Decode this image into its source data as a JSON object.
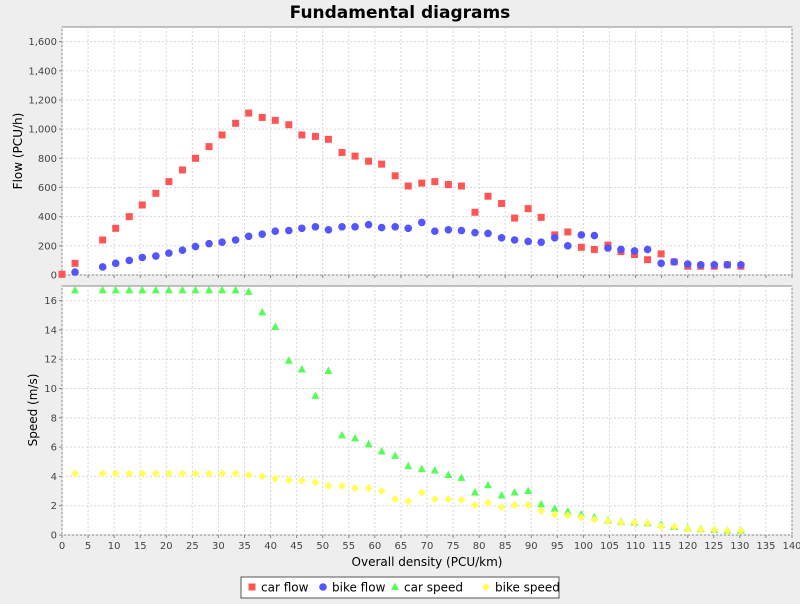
{
  "chart_data": {
    "type": "scatter",
    "title": "Fundamental diagrams",
    "xlabel": "Overall density (PCU/km)",
    "xlim": [
      0,
      140
    ],
    "x_ticks": [
      0,
      5,
      10,
      15,
      20,
      25,
      30,
      35,
      40,
      45,
      50,
      55,
      60,
      65,
      70,
      75,
      80,
      85,
      90,
      95,
      100,
      105,
      110,
      115,
      120,
      125,
      130,
      135,
      140
    ],
    "legend_position": "bottom",
    "grid": true,
    "panels": [
      {
        "ylabel": "Flow (PCU/h)",
        "ylim": [
          0,
          1700
        ],
        "y_ticks": [
          0,
          200,
          400,
          600,
          800,
          1000,
          1200,
          1400,
          1600
        ],
        "y_tick_labels": [
          "0",
          "200",
          "400",
          "600",
          "800",
          "1,000",
          "1,200",
          "1,400",
          "1,600"
        ]
      },
      {
        "ylabel": "Speed (m/s)",
        "ylim": [
          0,
          17
        ],
        "y_ticks": [
          0,
          2,
          4,
          6,
          8,
          10,
          12,
          14,
          16
        ],
        "y_tick_labels": [
          "0",
          "2",
          "4",
          "6",
          "8",
          "10",
          "12",
          "14",
          "16"
        ]
      }
    ],
    "series": [
      {
        "name": "car flow",
        "panel": 0,
        "marker": "square",
        "color": "#ff5555",
        "points": [
          [
            0,
            5
          ],
          [
            2.5,
            80
          ],
          [
            7.8,
            240
          ],
          [
            10.3,
            320
          ],
          [
            12.9,
            400
          ],
          [
            15.4,
            480
          ],
          [
            18,
            560
          ],
          [
            20.5,
            640
          ],
          [
            23.1,
            720
          ],
          [
            25.6,
            800
          ],
          [
            28.2,
            880
          ],
          [
            30.7,
            960
          ],
          [
            33.3,
            1040
          ],
          [
            35.8,
            1110
          ],
          [
            38.4,
            1080
          ],
          [
            40.9,
            1060
          ],
          [
            43.5,
            1030
          ],
          [
            46,
            960
          ],
          [
            48.6,
            950
          ],
          [
            51.1,
            930
          ],
          [
            53.7,
            840
          ],
          [
            56.2,
            815
          ],
          [
            58.8,
            780
          ],
          [
            61.3,
            760
          ],
          [
            63.9,
            680
          ],
          [
            66.4,
            610
          ],
          [
            69,
            630
          ],
          [
            71.5,
            640
          ],
          [
            74.1,
            620
          ],
          [
            76.6,
            610
          ],
          [
            79.2,
            430
          ],
          [
            81.7,
            540
          ],
          [
            84.3,
            490
          ],
          [
            86.8,
            390
          ],
          [
            89.4,
            455
          ],
          [
            91.9,
            395
          ],
          [
            94.5,
            275
          ],
          [
            97,
            295
          ],
          [
            99.6,
            190
          ],
          [
            102.1,
            175
          ],
          [
            104.7,
            205
          ],
          [
            107.2,
            160
          ],
          [
            109.8,
            140
          ],
          [
            112.3,
            105
          ],
          [
            114.9,
            145
          ],
          [
            117.4,
            90
          ],
          [
            120,
            60
          ],
          [
            122.5,
            60
          ],
          [
            125.1,
            60
          ],
          [
            127.6,
            70
          ],
          [
            130.2,
            60
          ]
        ]
      },
      {
        "name": "bike flow",
        "panel": 0,
        "marker": "circle",
        "color": "#5555ff",
        "points": [
          [
            2.5,
            20
          ],
          [
            7.8,
            55
          ],
          [
            10.3,
            80
          ],
          [
            12.9,
            100
          ],
          [
            15.4,
            120
          ],
          [
            18,
            130
          ],
          [
            20.5,
            150
          ],
          [
            23.1,
            170
          ],
          [
            25.6,
            195
          ],
          [
            28.2,
            215
          ],
          [
            30.7,
            225
          ],
          [
            33.3,
            240
          ],
          [
            35.8,
            265
          ],
          [
            38.4,
            280
          ],
          [
            40.9,
            300
          ],
          [
            43.5,
            305
          ],
          [
            46,
            320
          ],
          [
            48.6,
            330
          ],
          [
            51.1,
            310
          ],
          [
            53.7,
            330
          ],
          [
            56.2,
            330
          ],
          [
            58.8,
            345
          ],
          [
            61.3,
            325
          ],
          [
            63.9,
            330
          ],
          [
            66.4,
            320
          ],
          [
            69,
            360
          ],
          [
            71.5,
            300
          ],
          [
            74.1,
            310
          ],
          [
            76.6,
            305
          ],
          [
            79.2,
            290
          ],
          [
            81.7,
            285
          ],
          [
            84.3,
            255
          ],
          [
            86.8,
            240
          ],
          [
            89.4,
            230
          ],
          [
            91.9,
            225
          ],
          [
            94.5,
            255
          ],
          [
            97,
            200
          ],
          [
            99.6,
            275
          ],
          [
            102.1,
            270
          ],
          [
            104.7,
            185
          ],
          [
            107.2,
            175
          ],
          [
            109.8,
            165
          ],
          [
            112.3,
            175
          ],
          [
            114.9,
            80
          ],
          [
            117.4,
            90
          ],
          [
            120,
            75
          ],
          [
            122.5,
            70
          ],
          [
            125.1,
            70
          ],
          [
            127.6,
            70
          ],
          [
            130.2,
            70
          ]
        ]
      },
      {
        "name": "car speed",
        "panel": 1,
        "marker": "triangle",
        "color": "#55ff55",
        "points": [
          [
            2.5,
            16.7
          ],
          [
            7.8,
            16.7
          ],
          [
            10.3,
            16.7
          ],
          [
            12.9,
            16.7
          ],
          [
            15.4,
            16.7
          ],
          [
            18,
            16.7
          ],
          [
            20.5,
            16.7
          ],
          [
            23.1,
            16.7
          ],
          [
            25.6,
            16.7
          ],
          [
            28.2,
            16.7
          ],
          [
            30.7,
            16.7
          ],
          [
            33.3,
            16.7
          ],
          [
            35.8,
            16.6
          ],
          [
            38.4,
            15.2
          ],
          [
            40.9,
            14.2
          ],
          [
            43.5,
            11.9
          ],
          [
            46,
            11.3
          ],
          [
            48.6,
            9.5
          ],
          [
            51.1,
            11.2
          ],
          [
            53.7,
            6.8
          ],
          [
            56.2,
            6.6
          ],
          [
            58.8,
            6.2
          ],
          [
            61.3,
            5.7
          ],
          [
            63.9,
            5.4
          ],
          [
            66.4,
            4.7
          ],
          [
            69,
            4.5
          ],
          [
            71.5,
            4.4
          ],
          [
            74.1,
            4.1
          ],
          [
            76.6,
            3.9
          ],
          [
            79.2,
            2.9
          ],
          [
            81.7,
            3.4
          ],
          [
            84.3,
            2.7
          ],
          [
            86.8,
            2.9
          ],
          [
            89.4,
            3.0
          ],
          [
            91.9,
            2.1
          ],
          [
            94.5,
            1.8
          ],
          [
            97,
            1.6
          ],
          [
            99.6,
            1.4
          ],
          [
            102.1,
            1.2
          ],
          [
            104.7,
            1.0
          ],
          [
            107.2,
            0.9
          ],
          [
            109.8,
            0.85
          ],
          [
            112.3,
            0.8
          ],
          [
            114.9,
            0.7
          ],
          [
            117.4,
            0.55
          ],
          [
            120,
            0.45
          ],
          [
            122.5,
            0.4
          ],
          [
            125.1,
            0.35
          ],
          [
            127.6,
            0.3
          ],
          [
            130.2,
            0.3
          ]
        ]
      },
      {
        "name": "bike speed",
        "panel": 1,
        "marker": "diamond",
        "color": "#ffff55",
        "points": [
          [
            2.5,
            4.2
          ],
          [
            7.8,
            4.2
          ],
          [
            10.3,
            4.2
          ],
          [
            12.9,
            4.2
          ],
          [
            15.4,
            4.2
          ],
          [
            18,
            4.2
          ],
          [
            20.5,
            4.2
          ],
          [
            23.1,
            4.2
          ],
          [
            25.6,
            4.2
          ],
          [
            28.2,
            4.2
          ],
          [
            30.7,
            4.2
          ],
          [
            33.3,
            4.2
          ],
          [
            35.8,
            4.1
          ],
          [
            38.4,
            4.0
          ],
          [
            40.9,
            3.85
          ],
          [
            43.5,
            3.75
          ],
          [
            46,
            3.7
          ],
          [
            48.6,
            3.6
          ],
          [
            51.1,
            3.35
          ],
          [
            53.7,
            3.35
          ],
          [
            56.2,
            3.2
          ],
          [
            58.8,
            3.2
          ],
          [
            61.3,
            3.0
          ],
          [
            63.9,
            2.45
          ],
          [
            66.4,
            2.3
          ],
          [
            69,
            2.9
          ],
          [
            71.5,
            2.45
          ],
          [
            74.1,
            2.45
          ],
          [
            76.6,
            2.4
          ],
          [
            79.2,
            2.05
          ],
          [
            81.7,
            2.2
          ],
          [
            84.3,
            1.9
          ],
          [
            86.8,
            2.05
          ],
          [
            89.4,
            2.05
          ],
          [
            91.9,
            1.65
          ],
          [
            94.5,
            1.4
          ],
          [
            97,
            1.35
          ],
          [
            99.6,
            1.2
          ],
          [
            102.1,
            1.05
          ],
          [
            104.7,
            0.95
          ],
          [
            107.2,
            0.85
          ],
          [
            109.8,
            0.85
          ],
          [
            112.3,
            0.8
          ],
          [
            114.9,
            0.6
          ],
          [
            117.4,
            0.55
          ],
          [
            120,
            0.4
          ],
          [
            122.5,
            0.35
          ],
          [
            125.1,
            0.35
          ],
          [
            127.6,
            0.3
          ],
          [
            130.2,
            0.3
          ]
        ]
      }
    ]
  }
}
